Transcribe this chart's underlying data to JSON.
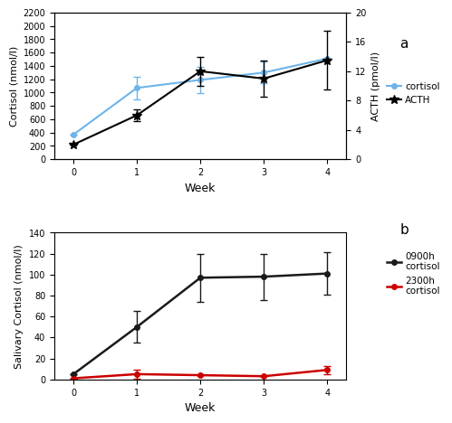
{
  "chart_a": {
    "weeks": [
      0,
      1,
      2,
      3,
      4
    ],
    "cortisol_values": [
      370,
      1070,
      1190,
      1300,
      1510
    ],
    "cortisol_yerr": [
      0,
      170,
      200,
      160,
      0
    ],
    "acth_values": [
      2,
      6,
      12,
      11,
      13.5
    ],
    "acth_yerr": [
      0,
      0.8,
      2.0,
      2.5,
      4.0
    ],
    "cortisol_color": "#6eb4e8",
    "acth_color": "#000000",
    "ylabel_left": "Cortisol (nmol/l)",
    "ylabel_right": "ACTH (pmol/l)",
    "xlabel": "Week",
    "ylim_left": [
      0,
      2200
    ],
    "ylim_right": [
      0,
      20
    ],
    "yticks_left": [
      0,
      200,
      400,
      600,
      800,
      1000,
      1200,
      1400,
      1600,
      1800,
      2000,
      2200
    ],
    "yticks_right": [
      0,
      4,
      8,
      12,
      16,
      20
    ],
    "legend_cortisol": "cortisol",
    "legend_acth": "ACTH",
    "label": "a"
  },
  "chart_b": {
    "weeks": [
      0,
      1,
      2,
      3,
      4
    ],
    "black_values": [
      5,
      50,
      97,
      98,
      101
    ],
    "black_yerr": [
      0,
      15,
      23,
      22,
      20
    ],
    "red_values": [
      1,
      5,
      4,
      3,
      9
    ],
    "red_yerr": [
      0,
      4,
      0,
      0,
      4
    ],
    "black_color": "#1a1a1a",
    "red_color": "#cc0000",
    "ylabel": "Salivary Cortisol (nmol/l)",
    "xlabel": "Week",
    "ylim": [
      0,
      140
    ],
    "yticks": [
      0,
      20,
      40,
      60,
      80,
      100,
      120,
      140
    ],
    "legend_black": "0900h\ncortisol",
    "legend_red": "2300h\ncortisol",
    "label": "b"
  },
  "background_color": "#ffffff",
  "panel_background": "#ffffff"
}
